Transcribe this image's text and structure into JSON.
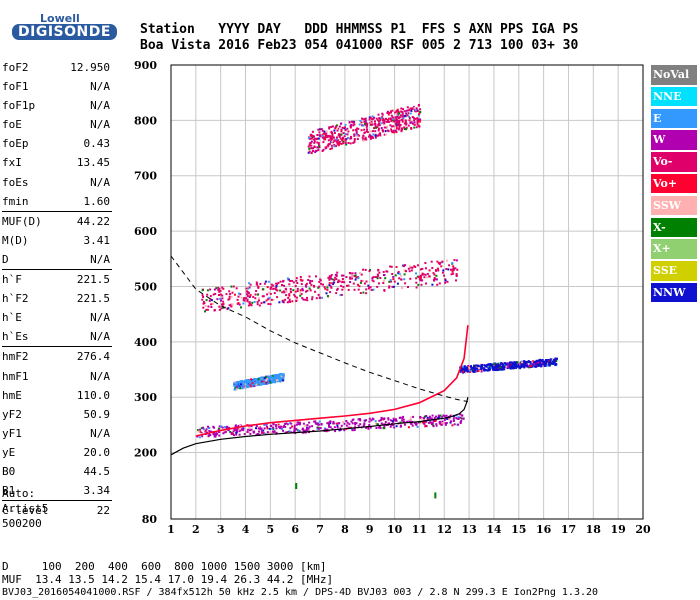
{
  "logo": {
    "line1": "Lowell",
    "line2": "DIGISONDE"
  },
  "header": {
    "line1": "Station   YYYY DAY   DDD HHMMSS P1  FFS S AXN PPS IGA PS",
    "line2": "Boa Vista 2016 Feb23 054 041000 RSF 005 2 713 100 03+ 30"
  },
  "params": [
    {
      "name": "foF2",
      "value": "12.950"
    },
    {
      "name": "foF1",
      "value": "N/A"
    },
    {
      "name": "foF1p",
      "value": "N/A"
    },
    {
      "name": "foE",
      "value": "N/A"
    },
    {
      "name": "foEp",
      "value": "0.43"
    },
    {
      "name": "fxI",
      "value": "13.45"
    },
    {
      "name": "foEs",
      "value": "N/A"
    },
    {
      "name": "fmin",
      "value": "1.60"
    },
    {
      "name": "MUF(D)",
      "value": "44.22"
    },
    {
      "name": "M(D)",
      "value": "3.41"
    },
    {
      "name": "D",
      "value": "N/A"
    },
    {
      "name": "h`F",
      "value": "221.5"
    },
    {
      "name": "h`F2",
      "value": "221.5"
    },
    {
      "name": "h`E",
      "value": "N/A"
    },
    {
      "name": "h`Es",
      "value": "N/A"
    },
    {
      "name": "hmF2",
      "value": "276.4"
    },
    {
      "name": "hmF1",
      "value": "N/A"
    },
    {
      "name": "hmE",
      "value": "110.0"
    },
    {
      "name": "yF2",
      "value": "50.9"
    },
    {
      "name": "yF1",
      "value": "N/A"
    },
    {
      "name": "yE",
      "value": "20.0"
    },
    {
      "name": "B0",
      "value": "44.5"
    },
    {
      "name": "B1",
      "value": "3.34"
    },
    {
      "name": "C-level",
      "value": "22"
    }
  ],
  "auto": {
    "line1": "Auto:",
    "line2": "Artist5",
    "line3": "500200"
  },
  "footer": {
    "line1": "D     100  200  400  600  800 1000 1500 3000 [km]",
    "line2": "MUF  13.4 13.5 14.2 15.4 17.0 19.4 26.3 44.2 [MHz]",
    "line3": "BVJ03_2016054041000.RSF / 384fx512h 50 kHz 2.5 km / DPS-4D BVJ03 003 / 2.8 N 299.3 E Ion2Png 1.3.20"
  },
  "legend": [
    {
      "label": "NoVal",
      "color": "#808080"
    },
    {
      "label": "NNE",
      "color": "#00e0ff"
    },
    {
      "label": "E",
      "color": "#3399ff"
    },
    {
      "label": "W",
      "color": "#b000b0"
    },
    {
      "label": "Vo-",
      "color": "#e0006a"
    },
    {
      "label": "Vo+",
      "color": "#ff0030"
    },
    {
      "label": "SSW",
      "color": "#ffb0b0"
    },
    {
      "label": "X-",
      "color": "#008000"
    },
    {
      "label": "X+",
      "color": "#90d070"
    },
    {
      "label": "SSE",
      "color": "#d0d000"
    },
    {
      "label": "NNW",
      "color": "#1010d0"
    }
  ],
  "chart_data": {
    "type": "scatter",
    "xlim": [
      1,
      20
    ],
    "ylim": [
      80,
      900
    ],
    "x_ticks": [
      1,
      2,
      3,
      4,
      5,
      6,
      7,
      8,
      9,
      10,
      11,
      12,
      13,
      14,
      15,
      16,
      17,
      18,
      19,
      20
    ],
    "y_ticks": [
      80,
      200,
      300,
      400,
      500,
      600,
      700,
      800,
      900
    ],
    "grid": true,
    "legend_position": "right",
    "profile_curve": {
      "x": [
        1.0,
        1.5,
        2.0,
        3.0,
        4.0,
        5.0,
        6.0,
        7.0,
        8.0,
        9.0,
        10.0,
        10.5,
        11.0,
        11.5,
        12.0,
        12.3,
        12.6,
        12.8,
        12.9,
        12.95
      ],
      "y": [
        196,
        208,
        216,
        224,
        229,
        233,
        236,
        239,
        243,
        247,
        252,
        254,
        256,
        259,
        262,
        265,
        270,
        278,
        290,
        300
      ]
    },
    "bottomside_curve": {
      "x": [
        2.0,
        3.0,
        4.0,
        5.0,
        6.0,
        7.0,
        8.0,
        9.0,
        10.0,
        11.0,
        12.0,
        12.5,
        12.8,
        12.95
      ],
      "y": [
        230,
        240,
        248,
        254,
        258,
        262,
        266,
        271,
        278,
        290,
        312,
        335,
        370,
        430
      ]
    },
    "dashed_curve": {
      "x": [
        1.0,
        1.5,
        2.0,
        3.0,
        4.0,
        5.0,
        6.0,
        7.0,
        8.0,
        9.0,
        10.0,
        11.0,
        12.0,
        12.5,
        12.95
      ],
      "y": [
        555,
        525,
        495,
        465,
        445,
        420,
        398,
        380,
        362,
        345,
        330,
        315,
        302,
        296,
        292
      ]
    },
    "trace_bands": [
      {
        "series": "W",
        "x_start": 2.0,
        "x_end": 12.8,
        "y_start": 228,
        "y_end": 272
      },
      {
        "series": "E",
        "x_start": 3.5,
        "x_end": 5.5,
        "y_start": 315,
        "y_end": 345
      },
      {
        "series": "NNW",
        "x_start": 12.6,
        "x_end": 16.5,
        "y_start": 345,
        "y_end": 372
      },
      {
        "series": "Vo-",
        "x_start": 2.2,
        "x_end": 12.5,
        "y_start": 455,
        "y_end": 552
      },
      {
        "series": "Vo-",
        "x_start": 6.5,
        "x_end": 11.0,
        "y_start": 740,
        "y_end": 832
      }
    ],
    "isolated_points": [
      {
        "series": "X-",
        "x": 11.6,
        "y": 128
      },
      {
        "series": "X-",
        "x": 6.0,
        "y": 145
      }
    ]
  }
}
